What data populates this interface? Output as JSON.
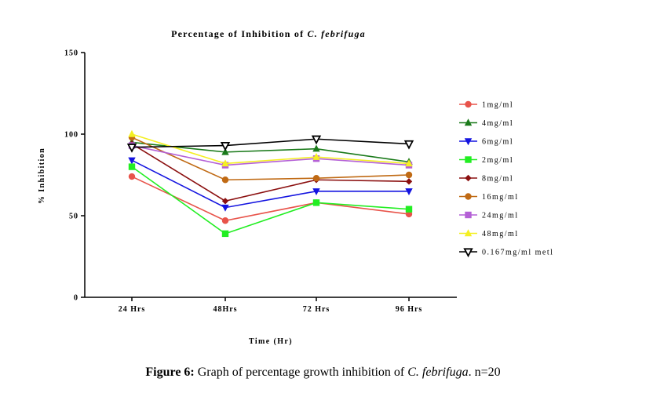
{
  "chart_data": {
    "type": "line",
    "title": "Percentage of Inhibition of",
    "title_species": "C. febrifuga",
    "xlabel": "Time (Hr)",
    "ylabel": "% Inhibition",
    "categories": [
      "24 Hrs",
      "48Hrs",
      "72 Hrs",
      "96 Hrs"
    ],
    "ylim": [
      0,
      150
    ],
    "yticks": [
      "0",
      "50",
      "100",
      "150"
    ],
    "grid": false,
    "legend_position": "right",
    "series": [
      {
        "name": "1mg/ml",
        "color": "#e8534a",
        "marker": "circle",
        "values": [
          74,
          47,
          58,
          51
        ]
      },
      {
        "name": "4mg/ml",
        "color": "#1a7a1a",
        "marker": "triangle-up",
        "values": [
          95,
          89,
          91,
          83
        ]
      },
      {
        "name": "6mg/ml",
        "color": "#1414e0",
        "marker": "triangle-down",
        "values": [
          84,
          55,
          65,
          65
        ]
      },
      {
        "name": "2mg/ml",
        "color": "#22ee22",
        "marker": "square",
        "values": [
          80,
          39,
          58,
          54
        ]
      },
      {
        "name": "8mg/ml",
        "color": "#8b1010",
        "marker": "diamond",
        "values": [
          94,
          59,
          72,
          71
        ]
      },
      {
        "name": "16mg/ml",
        "color": "#c06a14",
        "marker": "circle",
        "values": [
          98,
          72,
          73,
          75
        ]
      },
      {
        "name": "24mg/ml",
        "color": "#b460d6",
        "marker": "square",
        "values": [
          93,
          81,
          85,
          81
        ]
      },
      {
        "name": "48mg/ml",
        "color": "#f4ef22",
        "marker": "triangle-up",
        "values": [
          100,
          82,
          86,
          82
        ]
      },
      {
        "name": "0.167mg/ml metl",
        "color": "#000000",
        "marker": "triangle-down-open",
        "values": [
          92,
          93,
          97,
          94
        ]
      }
    ]
  },
  "caption": {
    "label": "Figure 6:",
    "text": " Graph of percentage growth inhibition of ",
    "species": "C. febrifuga",
    "suffix": ". n=20"
  }
}
